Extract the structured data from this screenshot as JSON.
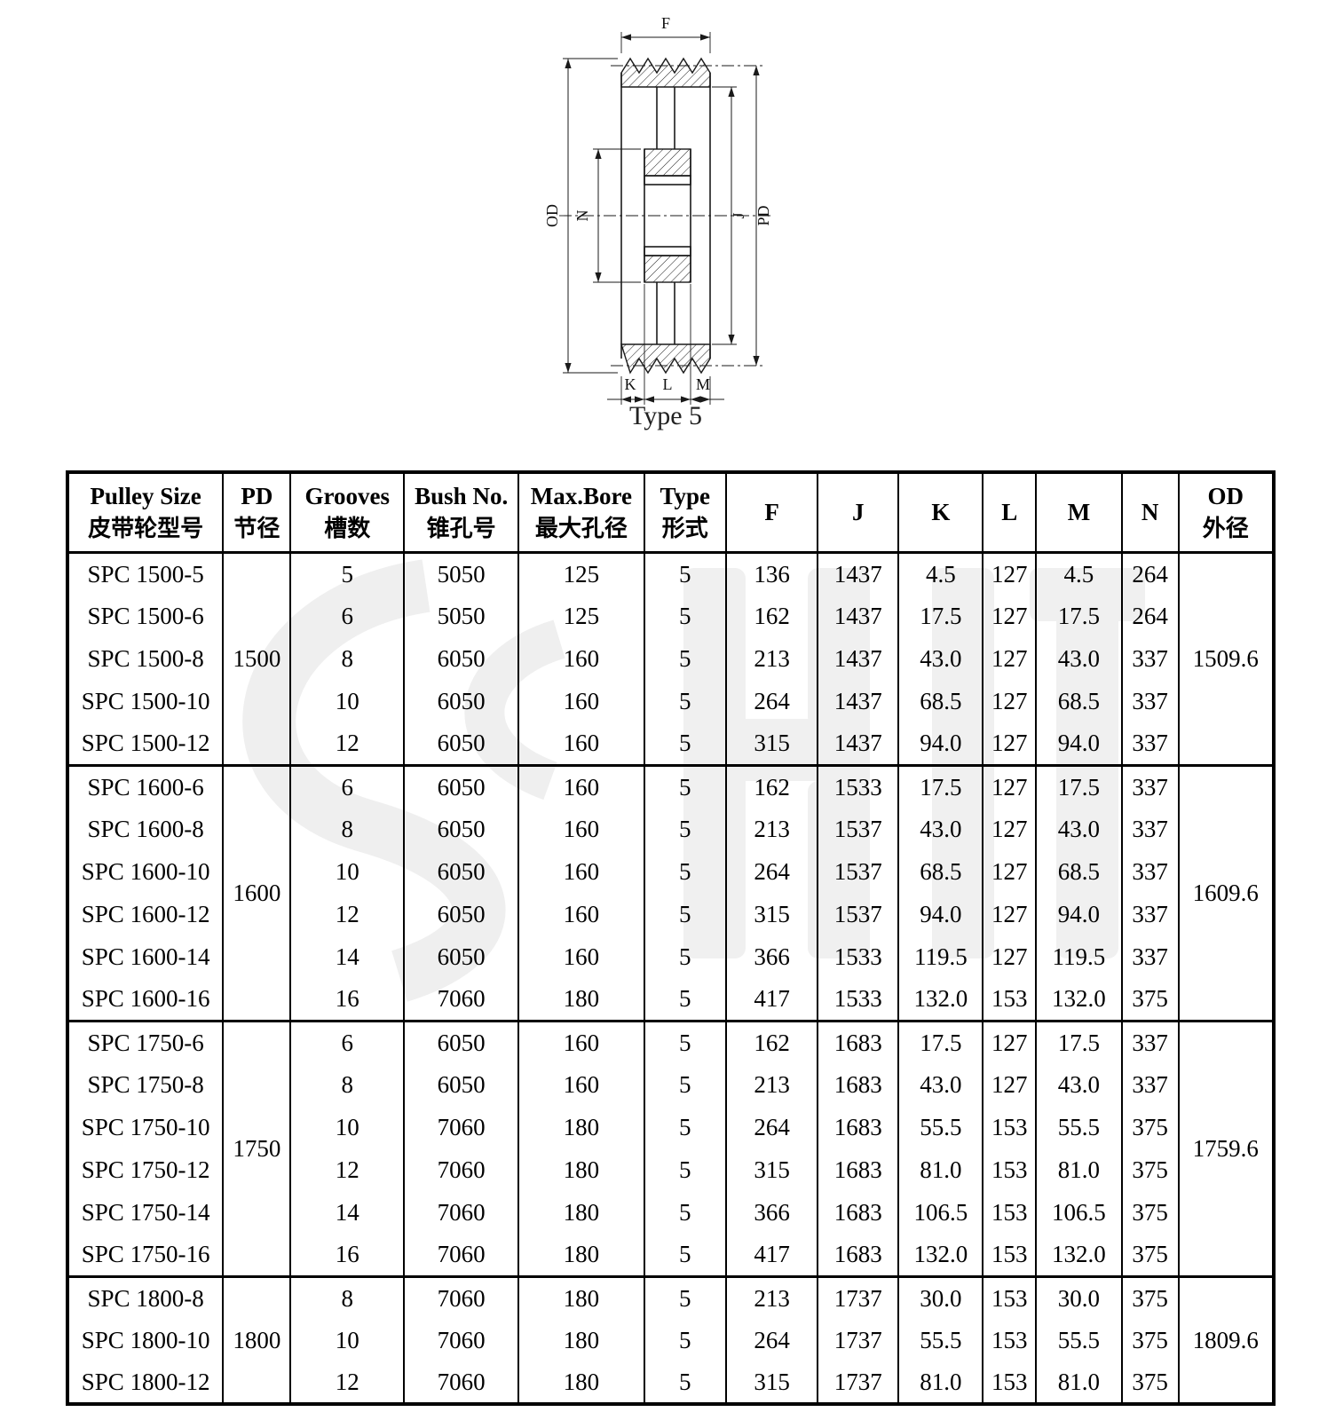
{
  "diagram": {
    "caption": "Type 5",
    "labels": {
      "f": "F",
      "od": "OD",
      "n": "N",
      "j": "J",
      "pd": "PD",
      "k": "K",
      "l": "L",
      "m": "M"
    }
  },
  "table": {
    "headers": [
      {
        "en": "Pulley Size",
        "zh": "皮带轮型号"
      },
      {
        "en": "PD",
        "zh": "节径"
      },
      {
        "en": "Grooves",
        "zh": "槽数"
      },
      {
        "en": "Bush No.",
        "zh": "锥孔号"
      },
      {
        "en": "Max.Bore",
        "zh": "最大孔径"
      },
      {
        "en": "Type",
        "zh": "形式"
      },
      {
        "en": "F",
        "zh": ""
      },
      {
        "en": "J",
        "zh": ""
      },
      {
        "en": "K",
        "zh": ""
      },
      {
        "en": "L",
        "zh": ""
      },
      {
        "en": "M",
        "zh": ""
      },
      {
        "en": "N",
        "zh": ""
      },
      {
        "en": "OD",
        "zh": "外径"
      }
    ],
    "groups": [
      {
        "pd": "1500",
        "od": "1509.6",
        "rows": [
          {
            "size": "SPC 1500-5",
            "grooves": "5",
            "bush": "5050",
            "max_bore": "125",
            "type": "5",
            "f": "136",
            "j": "1437",
            "k": "4.5",
            "l": "127",
            "m": "4.5",
            "n": "264"
          },
          {
            "size": "SPC 1500-6",
            "grooves": "6",
            "bush": "5050",
            "max_bore": "125",
            "type": "5",
            "f": "162",
            "j": "1437",
            "k": "17.5",
            "l": "127",
            "m": "17.5",
            "n": "264"
          },
          {
            "size": "SPC 1500-8",
            "grooves": "8",
            "bush": "6050",
            "max_bore": "160",
            "type": "5",
            "f": "213",
            "j": "1437",
            "k": "43.0",
            "l": "127",
            "m": "43.0",
            "n": "337"
          },
          {
            "size": "SPC 1500-10",
            "grooves": "10",
            "bush": "6050",
            "max_bore": "160",
            "type": "5",
            "f": "264",
            "j": "1437",
            "k": "68.5",
            "l": "127",
            "m": "68.5",
            "n": "337"
          },
          {
            "size": "SPC 1500-12",
            "grooves": "12",
            "bush": "6050",
            "max_bore": "160",
            "type": "5",
            "f": "315",
            "j": "1437",
            "k": "94.0",
            "l": "127",
            "m": "94.0",
            "n": "337"
          }
        ]
      },
      {
        "pd": "1600",
        "od": "1609.6",
        "rows": [
          {
            "size": "SPC 1600-6",
            "grooves": "6",
            "bush": "6050",
            "max_bore": "160",
            "type": "5",
            "f": "162",
            "j": "1533",
            "k": "17.5",
            "l": "127",
            "m": "17.5",
            "n": "337"
          },
          {
            "size": "SPC 1600-8",
            "grooves": "8",
            "bush": "6050",
            "max_bore": "160",
            "type": "5",
            "f": "213",
            "j": "1537",
            "k": "43.0",
            "l": "127",
            "m": "43.0",
            "n": "337"
          },
          {
            "size": "SPC 1600-10",
            "grooves": "10",
            "bush": "6050",
            "max_bore": "160",
            "type": "5",
            "f": "264",
            "j": "1537",
            "k": "68.5",
            "l": "127",
            "m": "68.5",
            "n": "337"
          },
          {
            "size": "SPC 1600-12",
            "grooves": "12",
            "bush": "6050",
            "max_bore": "160",
            "type": "5",
            "f": "315",
            "j": "1537",
            "k": "94.0",
            "l": "127",
            "m": "94.0",
            "n": "337"
          },
          {
            "size": "SPC 1600-14",
            "grooves": "14",
            "bush": "6050",
            "max_bore": "160",
            "type": "5",
            "f": "366",
            "j": "1533",
            "k": "119.5",
            "l": "127",
            "m": "119.5",
            "n": "337"
          },
          {
            "size": "SPC 1600-16",
            "grooves": "16",
            "bush": "7060",
            "max_bore": "180",
            "type": "5",
            "f": "417",
            "j": "1533",
            "k": "132.0",
            "l": "153",
            "m": "132.0",
            "n": "375"
          }
        ]
      },
      {
        "pd": "1750",
        "od": "1759.6",
        "rows": [
          {
            "size": "SPC 1750-6",
            "grooves": "6",
            "bush": "6050",
            "max_bore": "160",
            "type": "5",
            "f": "162",
            "j": "1683",
            "k": "17.5",
            "l": "127",
            "m": "17.5",
            "n": "337"
          },
          {
            "size": "SPC 1750-8",
            "grooves": "8",
            "bush": "6050",
            "max_bore": "160",
            "type": "5",
            "f": "213",
            "j": "1683",
            "k": "43.0",
            "l": "127",
            "m": "43.0",
            "n": "337"
          },
          {
            "size": "SPC 1750-10",
            "grooves": "10",
            "bush": "7060",
            "max_bore": "180",
            "type": "5",
            "f": "264",
            "j": "1683",
            "k": "55.5",
            "l": "153",
            "m": "55.5",
            "n": "375"
          },
          {
            "size": "SPC 1750-12",
            "grooves": "12",
            "bush": "7060",
            "max_bore": "180",
            "type": "5",
            "f": "315",
            "j": "1683",
            "k": "81.0",
            "l": "153",
            "m": "81.0",
            "n": "375"
          },
          {
            "size": "SPC 1750-14",
            "grooves": "14",
            "bush": "7060",
            "max_bore": "180",
            "type": "5",
            "f": "366",
            "j": "1683",
            "k": "106.5",
            "l": "153",
            "m": "106.5",
            "n": "375"
          },
          {
            "size": "SPC 1750-16",
            "grooves": "16",
            "bush": "7060",
            "max_bore": "180",
            "type": "5",
            "f": "417",
            "j": "1683",
            "k": "132.0",
            "l": "153",
            "m": "132.0",
            "n": "375"
          }
        ]
      },
      {
        "pd": "1800",
        "od": "1809.6",
        "rows": [
          {
            "size": "SPC 1800-8",
            "grooves": "8",
            "bush": "7060",
            "max_bore": "180",
            "type": "5",
            "f": "213",
            "j": "1737",
            "k": "30.0",
            "l": "153",
            "m": "30.0",
            "n": "375"
          },
          {
            "size": "SPC 1800-10",
            "grooves": "10",
            "bush": "7060",
            "max_bore": "180",
            "type": "5",
            "f": "264",
            "j": "1737",
            "k": "55.5",
            "l": "153",
            "m": "55.5",
            "n": "375"
          },
          {
            "size": "SPC 1800-12",
            "grooves": "12",
            "bush": "7060",
            "max_bore": "180",
            "type": "5",
            "f": "315",
            "j": "1737",
            "k": "81.0",
            "l": "153",
            "m": "81.0",
            "n": "375"
          }
        ]
      }
    ]
  }
}
